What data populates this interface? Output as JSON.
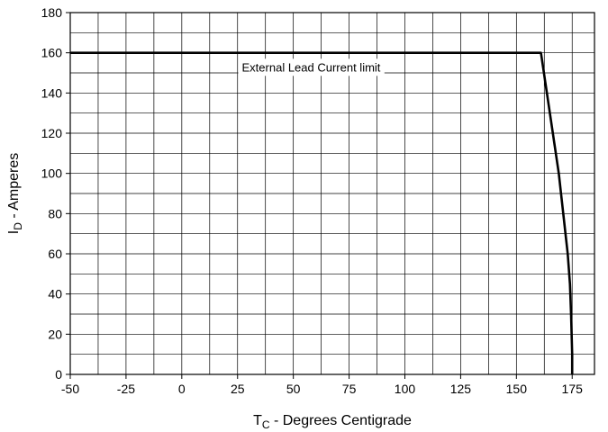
{
  "chart_data": {
    "type": "line",
    "title": "",
    "xlabel": {
      "main": "T",
      "sub": "C",
      "rest": " - Degrees Centigrade"
    },
    "ylabel": {
      "main": "I",
      "sub": "D",
      "rest": " - Amperes"
    },
    "xlim": [
      -50,
      185
    ],
    "ylim": [
      0,
      180
    ],
    "x_ticks": [
      -50,
      -25,
      0,
      25,
      50,
      75,
      100,
      125,
      150,
      175
    ],
    "y_ticks": [
      0,
      20,
      40,
      60,
      80,
      100,
      120,
      140,
      160,
      180
    ],
    "x_ticks_labels": [
      "-50",
      "-25",
      "0",
      "25",
      "50",
      "75",
      "100",
      "125",
      "150",
      "175"
    ],
    "y_ticks_labels": [
      "0",
      "20",
      "40",
      "60",
      "80",
      "100",
      "120",
      "140",
      "160",
      "180"
    ],
    "x_minor_step": 12.5,
    "y_minor_step": 10,
    "grid": true,
    "series": [
      {
        "x": [
          -50,
          161,
          163,
          165,
          167,
          169,
          170,
          171,
          172,
          173,
          174,
          174.5,
          175,
          175
        ],
        "y": [
          160,
          160,
          145,
          130,
          115,
          100,
          90,
          80,
          70,
          60,
          45,
          30,
          10,
          0
        ]
      }
    ],
    "annotations": [
      {
        "text": "External Lead Current limit",
        "x": 58,
        "y": 153
      }
    ],
    "colors": {
      "line": "#000000",
      "grid": "#000000",
      "background": "#ffffff"
    }
  }
}
